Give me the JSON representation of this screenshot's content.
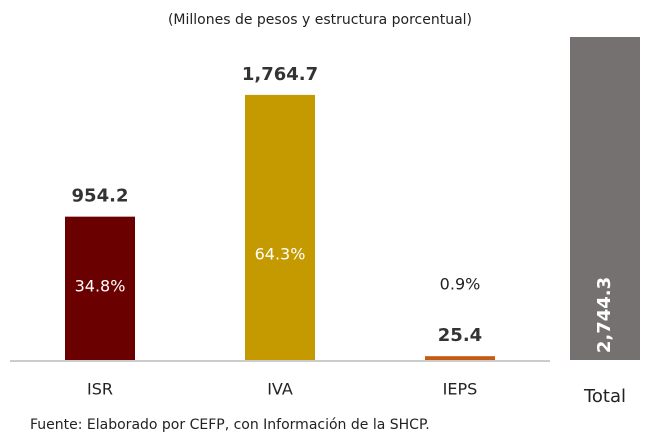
{
  "chart_data": {
    "type": "bar",
    "subtitle": "(Millones de pesos y estructura porcentual)",
    "categories": [
      "ISR",
      "IVA",
      "IEPS",
      "Total"
    ],
    "values": [
      954.2,
      1764.7,
      25.4,
      2744.3
    ],
    "value_labels": [
      "954.2",
      "1,764.7",
      "25.4",
      "2,744.3"
    ],
    "shares": [
      "34.8%",
      "64.3%",
      "0.9%",
      null
    ],
    "colors": [
      "#6b0000",
      "#c49a00",
      "#c55a11",
      "#767171"
    ],
    "ylim": [
      0,
      2150
    ],
    "source": "Fuente: Elaborado por CEFP, con Información de la SHCP."
  }
}
